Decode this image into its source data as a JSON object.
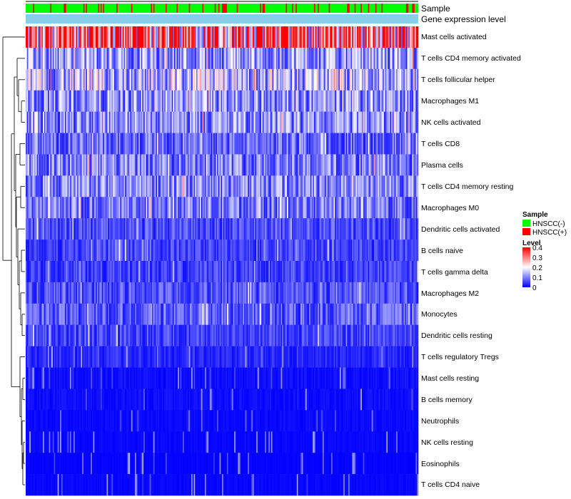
{
  "chart_data": {
    "type": "heatmap",
    "title": "",
    "n_samples": 320,
    "annotation_labels": [
      "Sample",
      "Gene expression level"
    ],
    "sample_groups": [
      "HNSCC(-)",
      "HNSCC(+)"
    ],
    "rows": [
      {
        "name": "Mast cells activated",
        "level": 0.33
      },
      {
        "name": "T cells CD4 memory activated",
        "level": 0.12
      },
      {
        "name": "T cells follicular helper",
        "level": 0.14
      },
      {
        "name": "Macrophages M1",
        "level": 0.11
      },
      {
        "name": "NK cells activated",
        "level": 0.11
      },
      {
        "name": "T cells CD8",
        "level": 0.08
      },
      {
        "name": "Plasma cells",
        "level": 0.1
      },
      {
        "name": "T cells CD4 memory resting",
        "level": 0.1
      },
      {
        "name": "Macrophages M0",
        "level": 0.09
      },
      {
        "name": "Dendritic cells activated",
        "level": 0.06
      },
      {
        "name": "B cells naive",
        "level": 0.05
      },
      {
        "name": "T cells gamma delta",
        "level": 0.05
      },
      {
        "name": "Macrophages M2",
        "level": 0.06
      },
      {
        "name": "Monocytes",
        "level": 0.07
      },
      {
        "name": "Dendritic cells resting",
        "level": 0.05
      },
      {
        "name": "T cells regulatory  Tregs",
        "level": 0.03
      },
      {
        "name": "Mast cells resting",
        "level": 0.02
      },
      {
        "name": "B cells memory",
        "level": 0.02
      },
      {
        "name": "Neutrophils",
        "level": 0.015
      },
      {
        "name": "NK cells resting",
        "level": 0.01
      },
      {
        "name": "Eosinophils",
        "level": 0.005
      },
      {
        "name": "T cells CD4 naive",
        "level": 0.01
      }
    ],
    "legend": {
      "sample_title": "Sample",
      "sample_items": [
        {
          "label": "HNSCC(-)",
          "color": "#00ff00"
        },
        {
          "label": "HNSCC(+)",
          "color": "#ff0000"
        }
      ],
      "level_title": "Level",
      "level_ticks": [
        "0.4",
        "0.3",
        "0.2",
        "0.1",
        "0"
      ],
      "level_range": [
        0,
        0.4
      ],
      "colors": {
        "low": "#0000ff",
        "mid": "#ffffff",
        "high": "#ff0000"
      }
    },
    "annotation_colors": {
      "expression_bar": "#87ceeb"
    }
  }
}
